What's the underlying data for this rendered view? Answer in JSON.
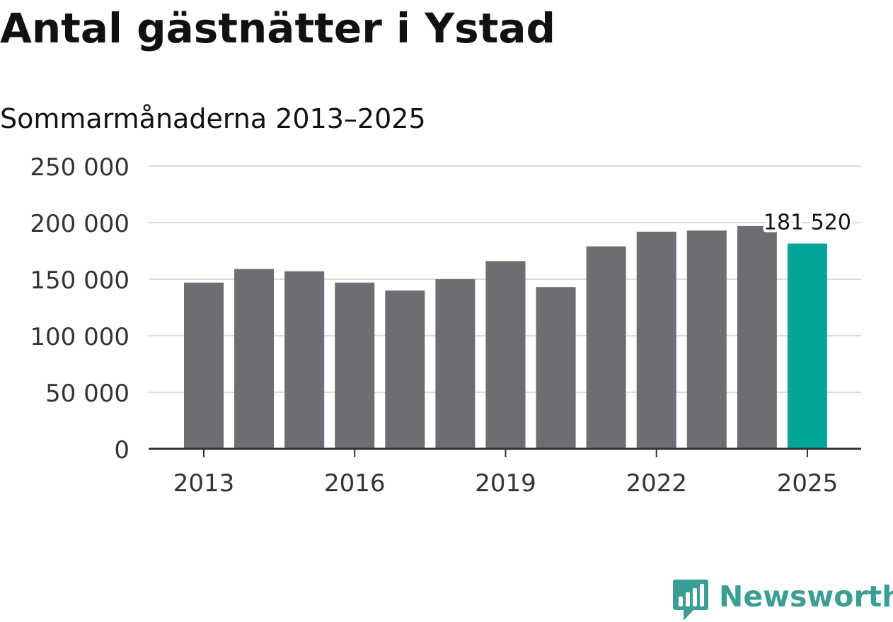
{
  "title": "Antal gästnätter i Ystad",
  "subtitle": "Sommarmånaderna 2013–2025",
  "brand": {
    "name": "Newsworthy",
    "icon": "newsworthy-logo-icon",
    "color": "#3a9e94"
  },
  "colors": {
    "bar": "#6e6d73",
    "highlight": "#00a499",
    "grid": "#dcdcdc",
    "axis": "#333333"
  },
  "chart_data": {
    "type": "bar",
    "title": "Antal gästnätter i Ystad",
    "subtitle": "Sommarmånaderna 2013–2025",
    "xlabel": "",
    "ylabel": "",
    "categories": [
      2013,
      2014,
      2015,
      2016,
      2017,
      2018,
      2019,
      2020,
      2021,
      2022,
      2023,
      2024,
      2025
    ],
    "x_tick_labels": [
      "2013",
      "2016",
      "2019",
      "2022",
      "2025"
    ],
    "values": [
      147000,
      159000,
      157000,
      147000,
      140000,
      150000,
      166000,
      143000,
      179000,
      192000,
      193000,
      197000,
      181520
    ],
    "ylim": [
      0,
      250000
    ],
    "y_ticks": [
      0,
      50000,
      100000,
      150000,
      200000,
      250000
    ],
    "y_tick_labels": [
      "0",
      "50 000",
      "100 000",
      "150 000",
      "200 000",
      "250 000"
    ],
    "grid": true,
    "legend": "none",
    "highlight_index": 12,
    "annotation": {
      "category": 2025,
      "text": "181 520"
    }
  }
}
